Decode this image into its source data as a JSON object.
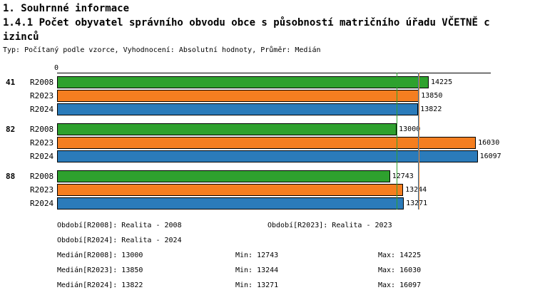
{
  "header": {
    "title_line1": "1. Souhrnné informace",
    "title_line2": "1.4.1 Počet obyvatel správního obvodu obce s působností matričního úřadu VČETNĚ c",
    "title_line3": "izinců",
    "subtitle": "Typ: Počítaný podle vzorce, Vyhodnocení: Absolutní hodnoty, Průměr: Medián"
  },
  "chart_data": {
    "type": "bar",
    "orientation": "horizontal",
    "title": "1.4.1 Počet obyvatel správního obvodu obce s působností matričního úřadu VČETNĚ cizinců",
    "axis_origin_label": "0",
    "xlim": [
      0,
      16600
    ],
    "grid": false,
    "categories": [
      "41",
      "82",
      "88"
    ],
    "series": [
      {
        "name": "R2008",
        "color": "#2ea12e",
        "values": [
          14225,
          13000,
          12743
        ],
        "median": 13000
      },
      {
        "name": "R2023",
        "color": "#f57e20",
        "values": [
          13850,
          16030,
          13244
        ],
        "median": 13850
      },
      {
        "name": "R2024",
        "color": "#2b7bba",
        "values": [
          13822,
          16097,
          13271
        ],
        "median": 13822
      }
    ]
  },
  "footer": {
    "row1_left": "Období[R2008]: Realita - 2008",
    "row1_right": "Období[R2023]: Realita - 2023",
    "row2_left": "Období[R2024]: Realita - 2024",
    "stats": [
      {
        "median": "Medián[R2008]: 13000",
        "min": "Min: 12743",
        "max": "Max: 14225"
      },
      {
        "median": "Medián[R2023]: 13850",
        "min": "Min: 13244",
        "max": "Max: 16030"
      },
      {
        "median": "Medián[R2024]: 13822",
        "min": "Min: 13271",
        "max": "Max: 16097"
      }
    ]
  }
}
